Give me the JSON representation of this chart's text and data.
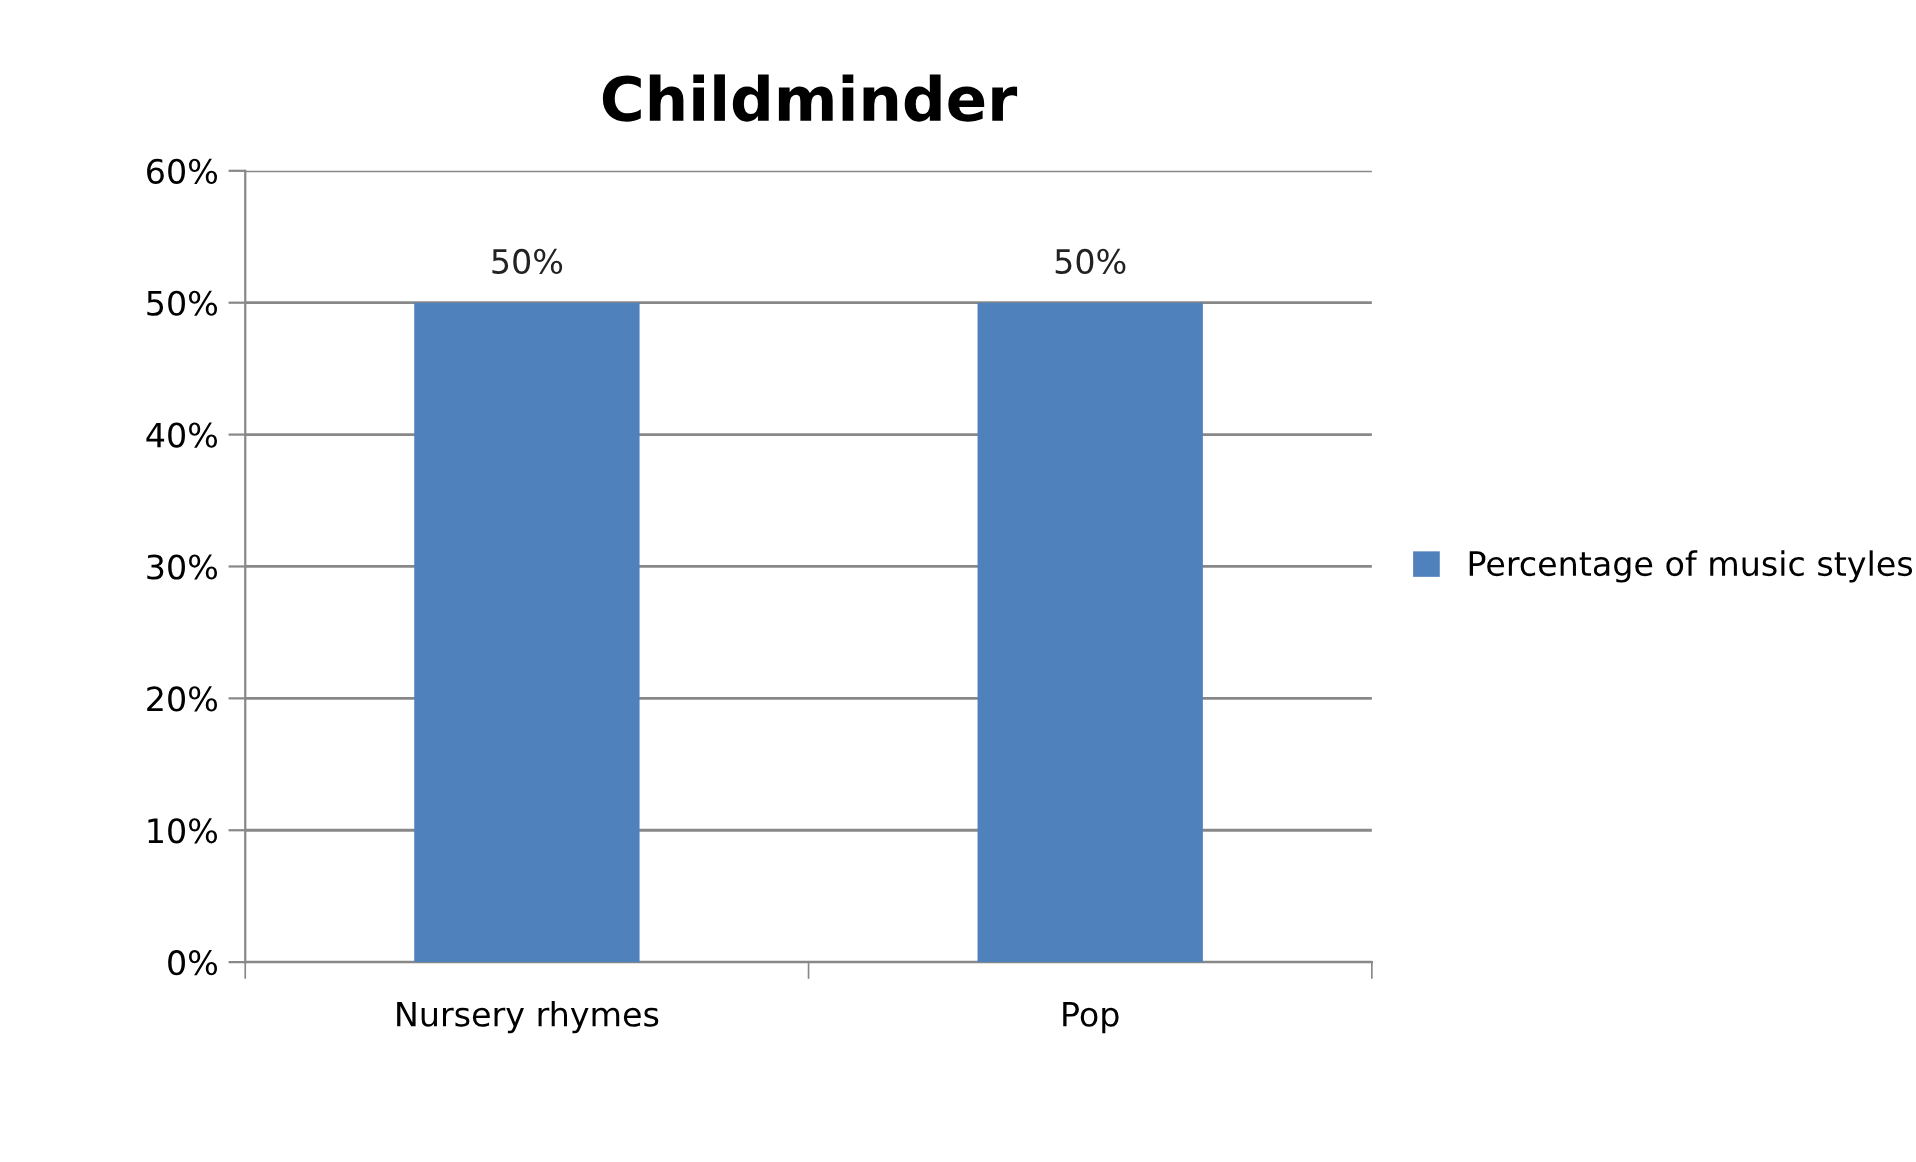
{
  "chart_data": {
    "type": "bar",
    "title": "Childminder",
    "categories": [
      "Nursery rhymes",
      "Pop"
    ],
    "series": [
      {
        "name": "Percentage of music styles",
        "color": "#4f81bd",
        "values": [
          50,
          50
        ],
        "value_labels": [
          "50%",
          "50%"
        ]
      }
    ],
    "ylim": [
      0,
      60
    ],
    "yticks": [
      {
        "value": 0,
        "label": "0%"
      },
      {
        "value": 10,
        "label": "10%"
      },
      {
        "value": 20,
        "label": "20%"
      },
      {
        "value": 30,
        "label": "30%"
      },
      {
        "value": 40,
        "label": "40%"
      },
      {
        "value": 50,
        "label": "50%"
      },
      {
        "value": 60,
        "label": "60%"
      }
    ],
    "grid": "y",
    "legend": "right"
  }
}
